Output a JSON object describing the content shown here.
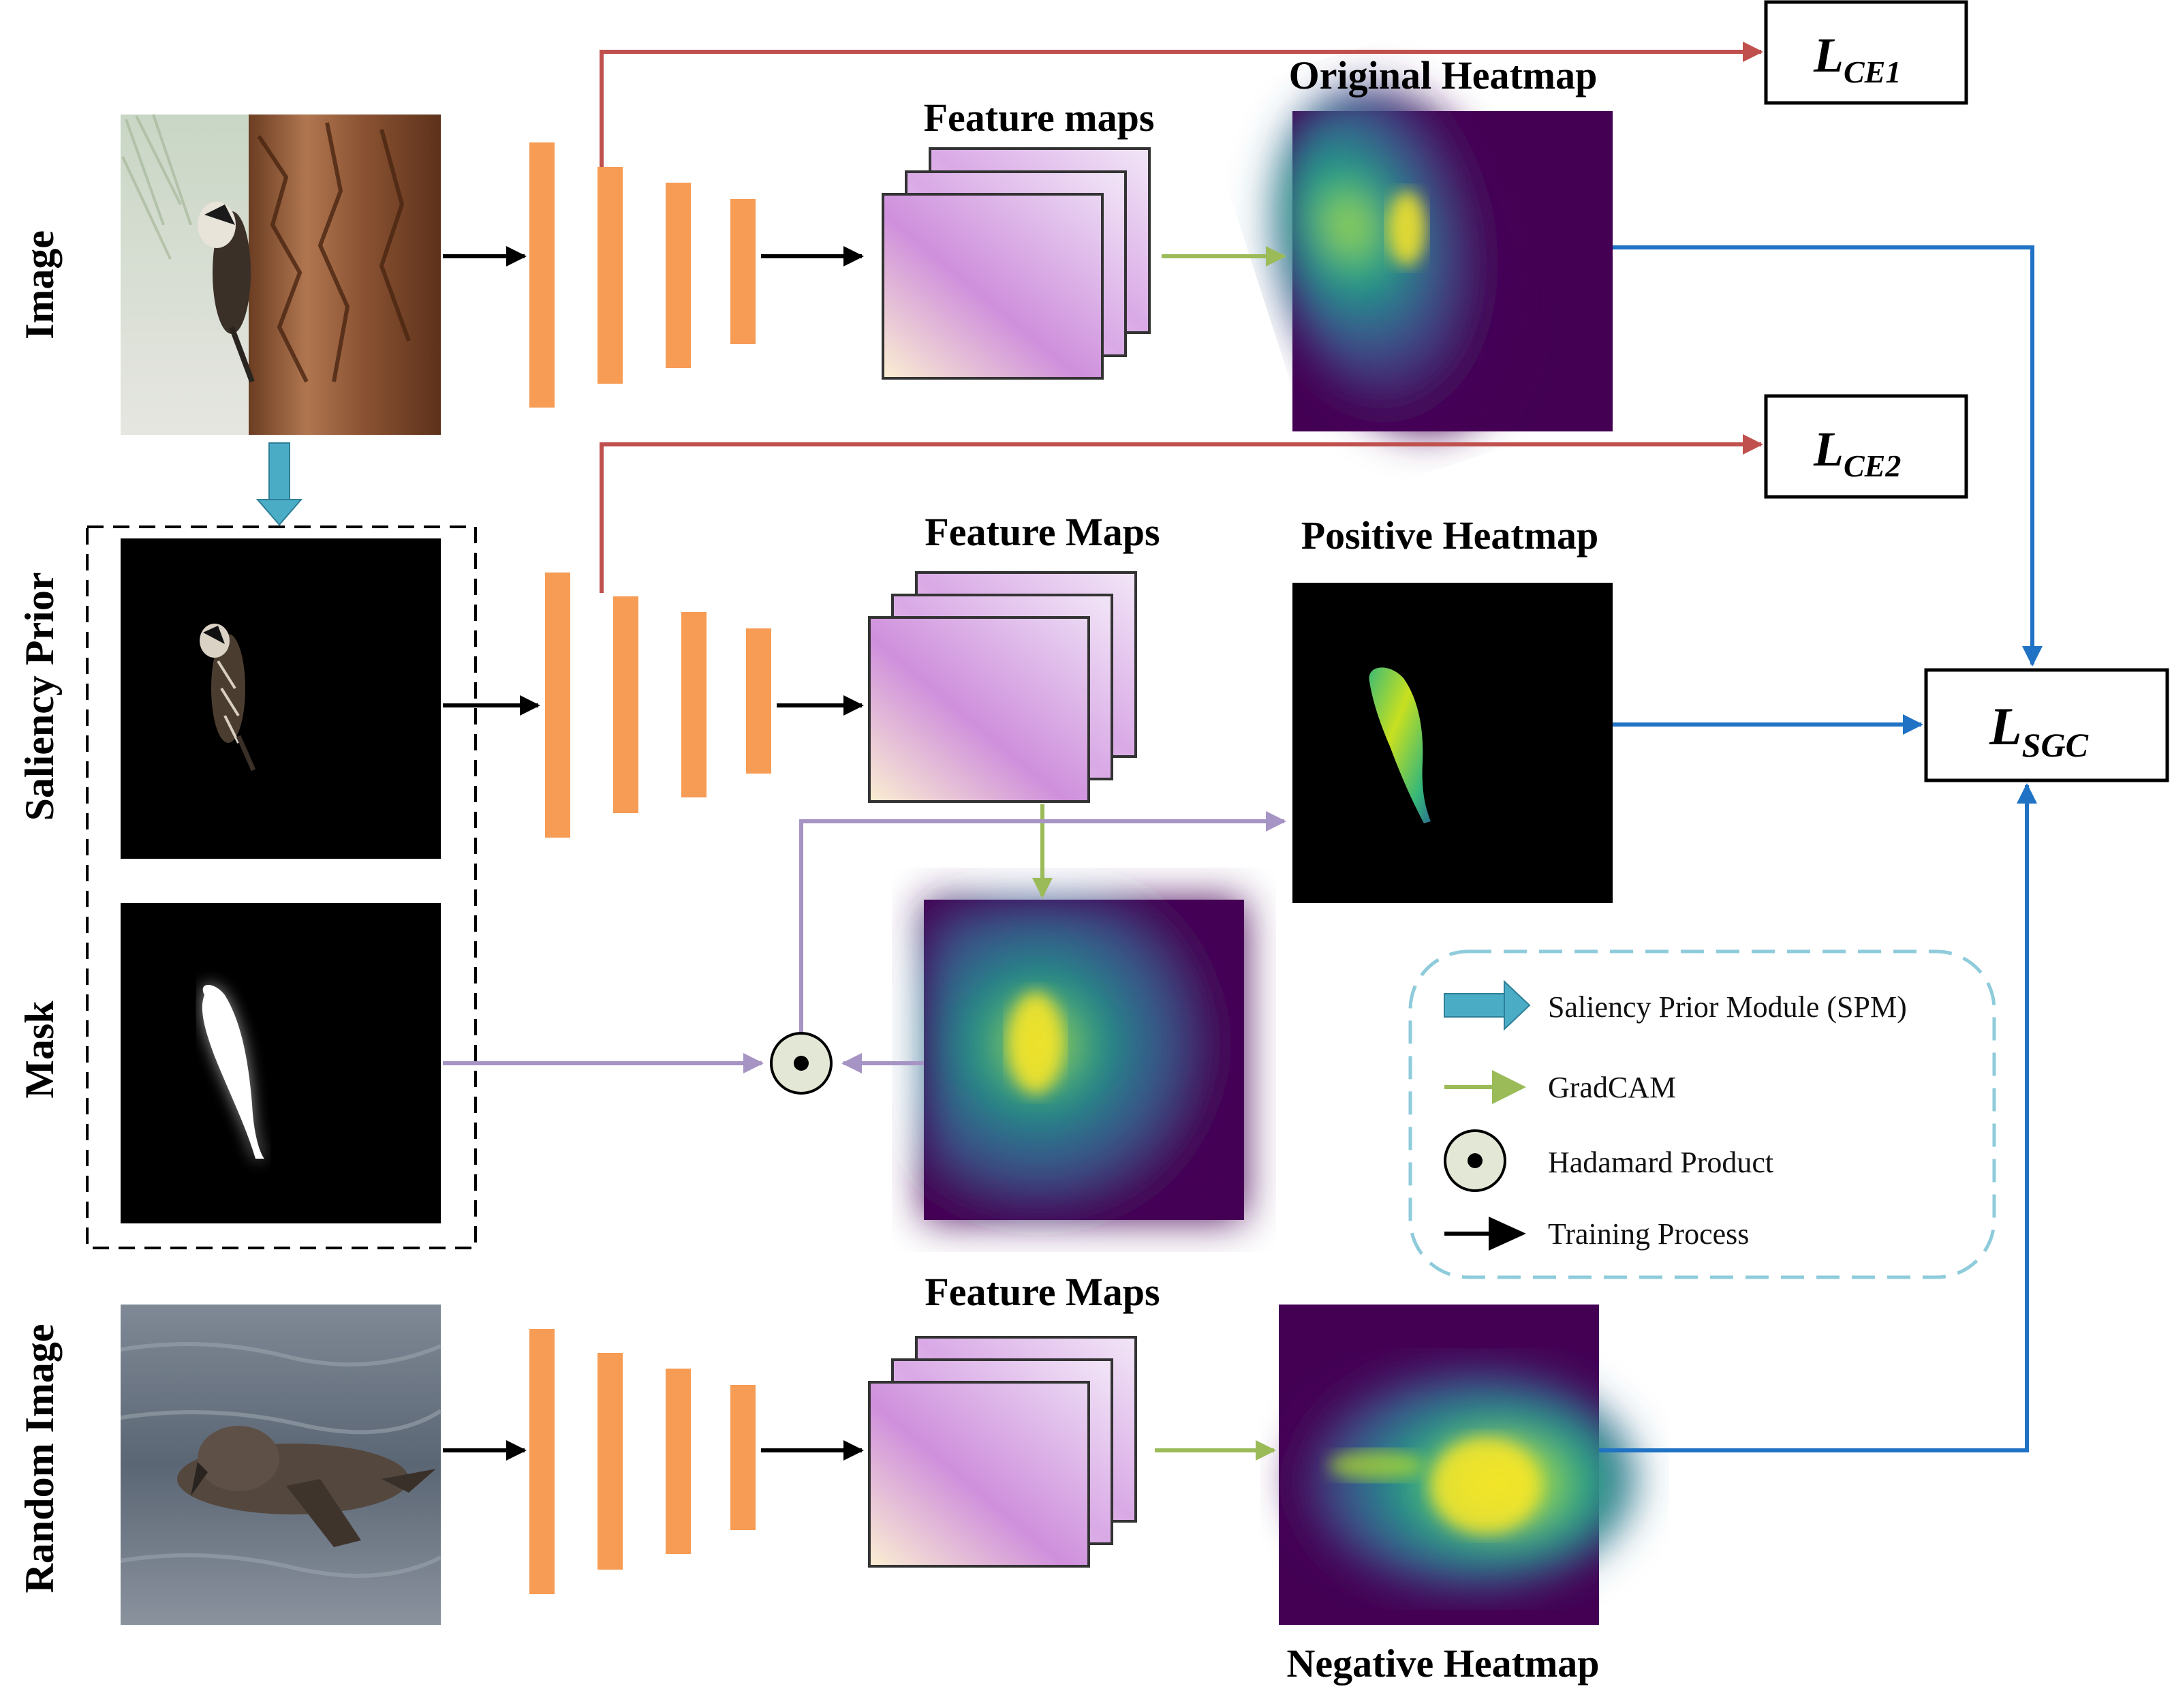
{
  "rows": {
    "image": "Image",
    "saliency": "Saliency Prior",
    "mask": "Mask",
    "random": "Random Image"
  },
  "titles": {
    "fm1": "Feature maps",
    "fm2": "Feature Maps",
    "fm3": "Feature Maps",
    "orig": "Original Heatmap",
    "pos": "Positive Heatmap",
    "neg": "Negative Heatmap"
  },
  "losses": {
    "ce1_main": "L",
    "ce1_sub": "CE1",
    "ce2_main": "L",
    "ce2_sub": "CE2",
    "sgc_main": "L",
    "sgc_sub": "SGC"
  },
  "legend": {
    "spm": "Saliency Prior  Module (SPM)",
    "gradcam": "GradCAM",
    "hadamard": "Hadamard Product",
    "training": "Training Process"
  },
  "colors": {
    "ce_arrow": "#c0504d",
    "sgc_arrow": "#1f72c4",
    "gradcam_arrow": "#9bbb59",
    "mask_arrow": "#a694c4",
    "spm_arrow": "#4bacc6",
    "backbone": "#f79c55",
    "legend_border": "#8ecbdb"
  }
}
